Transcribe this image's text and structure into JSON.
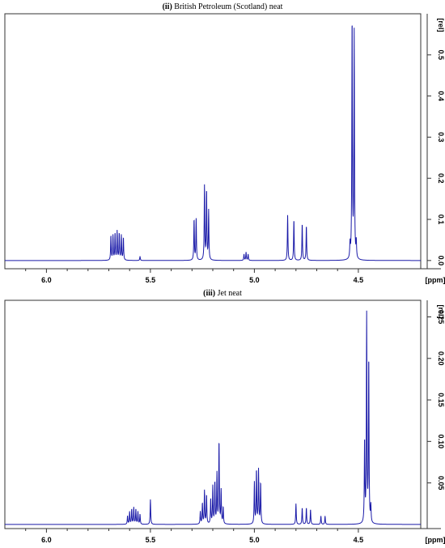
{
  "chart_data": [
    {
      "type": "line",
      "title_prefix": "(ii)",
      "title": "British Petroleum (Scotland) neat",
      "xlabel": "[ppm]",
      "ylabel": "[rel]",
      "xlim": [
        6.2,
        4.2
      ],
      "ylim": [
        -0.02,
        0.6
      ],
      "xticks": [
        6.0,
        5.5,
        5.0,
        4.5
      ],
      "xtick_labels": [
        "6.0",
        "5.5",
        "5.0",
        "4.5"
      ],
      "yticks": [
        0.0,
        0.1,
        0.2,
        0.3,
        0.4,
        0.5
      ],
      "ytick_labels": [
        "0.0",
        "0.1",
        "0.2",
        "0.3",
        "0.4",
        "0.5"
      ],
      "color": "#1a1aa8",
      "series": [
        {
          "peaks": [
            [
              5.69,
              0.06
            ],
            [
              5.68,
              0.06
            ],
            [
              5.67,
              0.065
            ],
            [
              5.66,
              0.07
            ],
            [
              5.65,
              0.065
            ],
            [
              5.64,
              0.06
            ],
            [
              5.63,
              0.055
            ],
            [
              5.55,
              0.01
            ],
            [
              5.29,
              0.1
            ],
            [
              5.28,
              0.1
            ],
            [
              5.24,
              0.18
            ],
            [
              5.23,
              0.17
            ],
            [
              5.22,
              0.12
            ],
            [
              5.05,
              0.015
            ],
            [
              5.04,
              0.02
            ],
            [
              5.03,
              0.015
            ],
            [
              4.84,
              0.11
            ],
            [
              4.81,
              0.1
            ],
            [
              4.77,
              0.09
            ],
            [
              4.75,
              0.085
            ],
            [
              4.54,
              0.035
            ],
            [
              4.53,
              0.59
            ],
            [
              4.52,
              0.55
            ],
            [
              4.51,
              0.04
            ]
          ]
        }
      ]
    },
    {
      "type": "line",
      "title_prefix": "(iii)",
      "title": "Jet neat",
      "xlabel": "[ppm]",
      "ylabel": "[rel]",
      "xlim": [
        6.2,
        4.2
      ],
      "ylim": [
        -0.005,
        0.27
      ],
      "xticks": [
        6.0,
        5.5,
        5.0,
        4.5
      ],
      "xtick_labels": [
        "6.0",
        "5.5",
        "5.0",
        "4.5"
      ],
      "yticks": [
        0.05,
        0.1,
        0.15,
        0.2,
        0.25
      ],
      "ytick_labels": [
        "0.05",
        "0.10",
        "0.15",
        "0.20",
        "0.25"
      ],
      "color": "#1a1aa8",
      "series": [
        {
          "peaks": [
            [
              5.61,
              0.01
            ],
            [
              5.6,
              0.015
            ],
            [
              5.59,
              0.018
            ],
            [
              5.58,
              0.02
            ],
            [
              5.57,
              0.018
            ],
            [
              5.56,
              0.015
            ],
            [
              5.55,
              0.012
            ],
            [
              5.5,
              0.03
            ],
            [
              5.26,
              0.015
            ],
            [
              5.25,
              0.025
            ],
            [
              5.24,
              0.04
            ],
            [
              5.23,
              0.035
            ],
            [
              5.21,
              0.03
            ],
            [
              5.2,
              0.045
            ],
            [
              5.19,
              0.05
            ],
            [
              5.18,
              0.06
            ],
            [
              5.17,
              0.1
            ],
            [
              5.16,
              0.04
            ],
            [
              5.15,
              0.02
            ],
            [
              5.0,
              0.05
            ],
            [
              4.99,
              0.065
            ],
            [
              4.98,
              0.065
            ],
            [
              4.97,
              0.05
            ],
            [
              4.8,
              0.025
            ],
            [
              4.77,
              0.02
            ],
            [
              4.75,
              0.02
            ],
            [
              4.73,
              0.018
            ],
            [
              4.68,
              0.01
            ],
            [
              4.66,
              0.01
            ],
            [
              4.47,
              0.1
            ],
            [
              4.46,
              0.25
            ],
            [
              4.45,
              0.2
            ],
            [
              4.44,
              0.02
            ]
          ]
        }
      ]
    }
  ]
}
